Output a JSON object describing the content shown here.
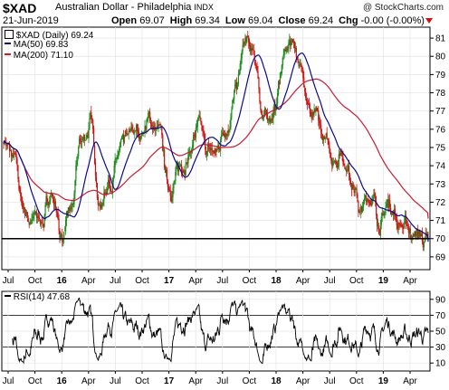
{
  "header": {
    "symbol": "$XAD",
    "description": "Australian Dollar - Philadelphia",
    "exchange": "INDX",
    "brand": "@ StockCharts.com",
    "date": "21-Jun-2019",
    "open_label": "Open",
    "open_value": "69.07",
    "high_label": "High",
    "high_value": "69.34",
    "low_label": "Low",
    "low_value": "69.04",
    "close_label": "Close",
    "close_value": "69.24",
    "chg_label": "Chg",
    "chg_value": "-0.00 (-0.00%)"
  },
  "legend": {
    "price": "$XAD (Daily) 69.24",
    "ma50": "MA(50) 69.83",
    "ma200": "MA(200) 71.10",
    "rsi": "RSI(14) 47.68"
  },
  "colors": {
    "up_candle": "#1a8a1a",
    "down_candle": "#d01010",
    "ma50": "#0a0a8c",
    "ma200": "#c81c32",
    "support_line": "#000000",
    "rsi_line": "#000000",
    "down_arrow": "#d01010"
  },
  "icons": {
    "down_arrow": "triangle-down-icon"
  },
  "chart_data": [
    {
      "type": "candlestick",
      "symbol": "$XAD",
      "y_axis_ticks": [
        69,
        70,
        71,
        72,
        73,
        74,
        75,
        76,
        77,
        78,
        79,
        80,
        81
      ],
      "ylim": [
        68.3,
        81.6
      ],
      "x_axis_ticks": [
        "Jul",
        "Oct",
        "16",
        "Apr",
        "Jul",
        "Oct",
        "17",
        "Apr",
        "Jul",
        "Oct",
        "18",
        "Apr",
        "Jul",
        "Oct",
        "19",
        "Apr"
      ],
      "x_axis_bold_ticks": [
        "16",
        "17",
        "18",
        "19"
      ],
      "horizontal_line": 70.0,
      "price_path_monthly": {
        "month_start": "2015-07",
        "values": [
          75.5,
          74.2,
          71.5,
          71.0,
          71.0,
          72.6,
          70.2,
          71.2,
          75.0,
          76.2,
          72.0,
          73.5,
          74.5,
          75.0,
          75.6,
          76.5,
          75.8,
          72.8,
          73.5,
          74.8,
          76.0,
          74.5,
          74.5,
          76.5,
          78.0,
          80.5,
          79.5,
          76.5,
          77.0,
          80.0,
          80.8,
          79.0,
          76.8,
          75.2,
          74.5,
          75.0,
          73.8,
          71.5,
          72.5,
          71.0,
          72.0,
          71.0,
          70.5,
          70.2,
          69.5
        ],
        "close": 69.24
      },
      "series": [
        {
          "name": "MA(50)",
          "last": 69.83
        },
        {
          "name": "MA(200)",
          "last": 71.1
        }
      ]
    },
    {
      "type": "line",
      "name": "RSI(14)",
      "y_axis_ticks": [
        10,
        30,
        50,
        70,
        90
      ],
      "ylim": [
        0,
        100
      ],
      "reference_lines": [
        30,
        70
      ],
      "x_axis_ticks": [
        "Jul",
        "Oct",
        "16",
        "Apr",
        "Jul",
        "Oct",
        "17",
        "Apr",
        "Jul",
        "Oct",
        "18",
        "Apr",
        "Jul",
        "Oct",
        "19",
        "Apr"
      ],
      "x_axis_bold_ticks": [
        "16",
        "17",
        "18",
        "19"
      ],
      "last": 47.68
    }
  ]
}
